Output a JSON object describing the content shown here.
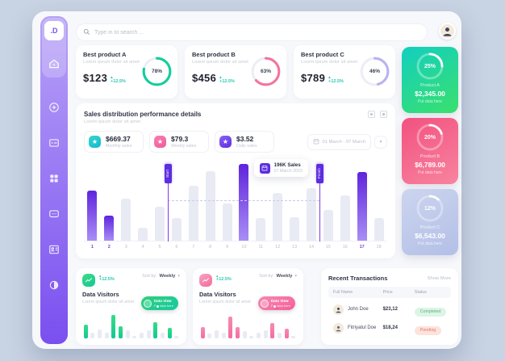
{
  "app": {
    "logo": ".D",
    "search_placeholder": "Type in to search ...",
    "sidebar_icons": [
      "home",
      "add-circle",
      "gallery",
      "apps-grid",
      "messages",
      "profile-card",
      "contrast-toggle"
    ]
  },
  "colors": {
    "page_bg": "#c8d3e3",
    "window_bg": "#f7f8fb",
    "sidebar_top": "#b7a2f7",
    "sidebar_bottom": "#7a4ff0",
    "positive_delta": "#2bc9b4",
    "bar_highlight_top": "#5f24dd",
    "bar_highlight_bottom": "#a98ef5",
    "bar_muted": "#e9ebf4",
    "status_completed_bg": "#def5e6",
    "status_completed_text": "#53b578",
    "status_pending_bg": "#fce3de",
    "status_pending_text": "#e5785f"
  },
  "product_cards": [
    {
      "title": "Best product A",
      "subtitle": "Lorem ipsum dolor sit amet",
      "value": "$123",
      "delta": "+12.5%",
      "ring": {
        "pct": 78,
        "label": "78%",
        "color": "#10ce9c"
      }
    },
    {
      "title": "Best product B",
      "subtitle": "Lorem ipsum dolor sit amet",
      "value": "$456",
      "delta": "+12.5%",
      "ring": {
        "pct": 63,
        "label": "63%",
        "color": "#f4739f"
      }
    },
    {
      "title": "Best product C",
      "subtitle": "Lorem ipsum dolor sit amet",
      "value": "$789",
      "delta": "+12.5%",
      "ring": {
        "pct": 46,
        "label": "46%",
        "color": "#b9b2f2"
      }
    }
  ],
  "side_cards": [
    {
      "ring_pct": 25,
      "ring_label": "25%",
      "product": "Product A",
      "amount": "$2,345.00",
      "note": "Put data here",
      "bg_from": "#12cfc0",
      "bg_to": "#3ae06c"
    },
    {
      "ring_pct": 20,
      "ring_label": "20%",
      "product": "Product B",
      "amount": "$6,789.00",
      "note": "Put data here",
      "bg_from": "#f2517f",
      "bg_to": "#f8849f"
    },
    {
      "ring_pct": 12,
      "ring_label": "12%",
      "product": "Product C",
      "amount": "$6,543.00",
      "note": "Put data here",
      "bg_from": "#ccd5ef",
      "bg_to": "#b3bfe6"
    }
  ],
  "sales_section": {
    "title": "Sales distribution performance details",
    "subtitle": "Lorem ipsum dolor sit amet",
    "stats": [
      {
        "value": "$669.37",
        "label": "Monthly sales",
        "icon": "star",
        "icon_from": "#35d6c8",
        "icon_to": "#12b9d5"
      },
      {
        "value": "$79.3",
        "label": "Weekly sales",
        "icon": "star",
        "icon_from": "#f77fb0",
        "icon_to": "#ef5a9b"
      },
      {
        "value": "$3.52",
        "label": "Daily sales",
        "icon": "star",
        "icon_from": "#8a63f5",
        "icon_to": "#5d2de0"
      }
    ],
    "date_range": "01 March - 07 March",
    "tooltip_title": "196K Sales",
    "tooltip_date": "07 March 2023",
    "start_label": "Start",
    "finish_label": "Finish"
  },
  "chart_data": [
    {
      "id": "sales-distribution",
      "type": "bar",
      "title": "Sales distribution performance details",
      "categories": [
        "1",
        "2",
        "3",
        "4",
        "5",
        "6",
        "7",
        "8",
        "9",
        "10",
        "11",
        "12",
        "13",
        "14",
        "15",
        "16",
        "17",
        "18"
      ],
      "values": [
        65,
        33,
        55,
        17,
        44,
        30,
        72,
        91,
        48,
        100,
        30,
        62,
        31,
        68,
        40,
        59,
        90,
        29
      ],
      "highlighted_bars": [
        1,
        2,
        10,
        17
      ],
      "highlighted_labels": [
        1,
        2,
        17
      ],
      "start_flag_after": 5,
      "finish_flag_after": 14,
      "dashed_line_top_pct": 47,
      "tooltip_left_pct": 56,
      "ylim": [
        0,
        100
      ],
      "grid": false,
      "xlabel": "",
      "ylabel": ""
    },
    {
      "id": "data-visitors-green",
      "type": "bar",
      "title": "Data Visitors",
      "values": [
        50,
        20,
        32,
        22,
        85,
        45,
        28,
        10,
        20,
        30,
        58,
        22,
        38,
        10
      ],
      "highlighted_bars": [
        1,
        5,
        6,
        11,
        13
      ],
      "tooltip_bar": 11,
      "bar_from": "#35dd84",
      "bar_to": "#14c795"
    },
    {
      "id": "data-visitors-pink",
      "type": "bar",
      "title": "Data Visitors",
      "values": [
        40,
        18,
        30,
        22,
        80,
        42,
        26,
        10,
        20,
        30,
        55,
        22,
        35,
        10
      ],
      "highlighted_bars": [
        1,
        5,
        6,
        11,
        13
      ],
      "tooltip_bar": 11,
      "bar_from": "#f98ab2",
      "bar_to": "#f26d9d"
    }
  ],
  "visitor_cards": [
    {
      "title": "Data Visitors",
      "subtitle": "Lorem ipsum dolor sit amet",
      "delta": "+12.5%",
      "sort_label": "Sort by:",
      "sort_value": "Weekly",
      "tooltip_title": "Data View",
      "tooltip_sub": "Put data here",
      "icon_from": "#3ddc84",
      "icon_to": "#13c793",
      "pill_from": "#2fd079",
      "pill_to": "#17c9a3"
    },
    {
      "title": "Data Visitors",
      "subtitle": "Lorem ipsum dolor sit amet",
      "delta": "+12.5%",
      "sort_label": "Sort by:",
      "sort_value": "Weekly",
      "tooltip_title": "Data View",
      "tooltip_sub": "Put data here",
      "icon_from": "#f9a1c0",
      "icon_to": "#f26d9d",
      "pill_from": "#f888b0",
      "pill_to": "#f2609a"
    }
  ],
  "transactions": {
    "title": "Recent Transactions",
    "show_more": "Show More",
    "columns": [
      "Full Name",
      "Price",
      "Status"
    ],
    "rows": [
      {
        "name": "John Doe",
        "price": "$23,12",
        "status": "Completed",
        "status_style": "completed"
      },
      {
        "name": "Fitriyatul Doe",
        "price": "$18,24",
        "status": "Pending",
        "status_style": "pending"
      }
    ]
  }
}
